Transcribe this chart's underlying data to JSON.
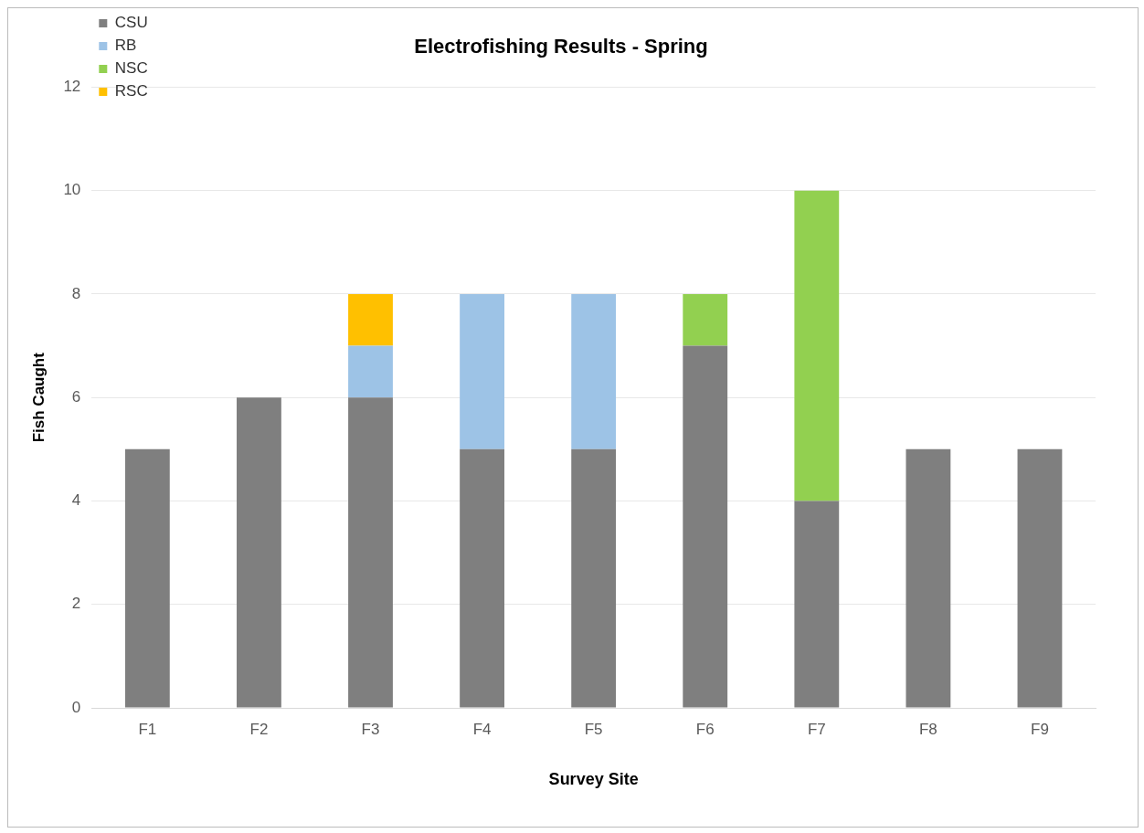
{
  "chart_data": {
    "type": "bar",
    "title": "Electrofishing Results - Spring",
    "xlabel": "Survey Site",
    "ylabel": "Fish Caught",
    "categories": [
      "F1",
      "F2",
      "F3",
      "F4",
      "F5",
      "F6",
      "F7",
      "F8",
      "F9"
    ],
    "series": [
      {
        "name": "CSU",
        "color": "#7f7f7f",
        "values": [
          5,
          6,
          6,
          5,
          5,
          7,
          4,
          5,
          5
        ]
      },
      {
        "name": "RB",
        "color": "#9dc3e6",
        "values": [
          null,
          null,
          1,
          3,
          3,
          null,
          null,
          null,
          null
        ]
      },
      {
        "name": "NSC",
        "color": "#92d050",
        "values": [
          null,
          null,
          null,
          null,
          null,
          1,
          6,
          null,
          null
        ]
      },
      {
        "name": "RSC",
        "color": "#ffc000",
        "values": [
          null,
          null,
          1,
          null,
          null,
          null,
          null,
          null,
          null
        ]
      }
    ],
    "stacked": true,
    "ylim": [
      0,
      12
    ],
    "yticks": [
      0,
      2,
      4,
      6,
      8,
      10,
      12
    ],
    "grid": "y",
    "legend": "top left"
  }
}
